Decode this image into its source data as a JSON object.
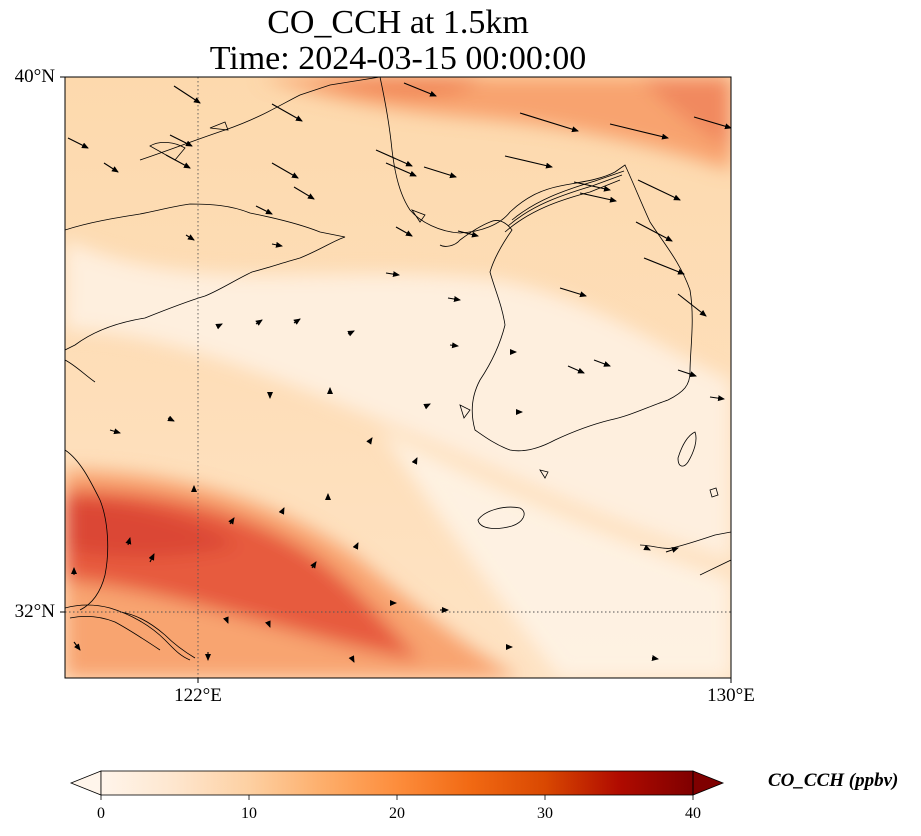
{
  "title_line1": "CO_CCH at 1.5km",
  "title_line2": "Time: 2024-03-15 00:00:00",
  "map": {
    "lat_labels": [
      "40°N",
      "32°N"
    ],
    "lon_labels": [
      "122°E",
      "130°E"
    ],
    "lon_range": [
      120,
      130
    ],
    "lat_range": [
      31,
      40
    ],
    "gridlines": {
      "lons": [
        122
      ],
      "lats": [
        32
      ],
      "style": "dotted"
    },
    "field": "CO_CCH",
    "overlay": "wind vectors (arrows)"
  },
  "colorbar": {
    "label": "CO_CCH (ppbv)",
    "ticks": [
      "0",
      "10",
      "20",
      "30",
      "40"
    ],
    "range": [
      0,
      40
    ],
    "extend": "both",
    "colormap": [
      "#fff5eb",
      "#fee6ce",
      "#fdd0a2",
      "#fdae6b",
      "#fd8d3c",
      "#f16913",
      "#d94801",
      "#a63603",
      "#7f2704"
    ],
    "end_colors": {
      "low": "#fff5eb",
      "high": "#7f2704"
    }
  },
  "colors": {
    "coastline": "#000000",
    "arrow": "#000000"
  }
}
